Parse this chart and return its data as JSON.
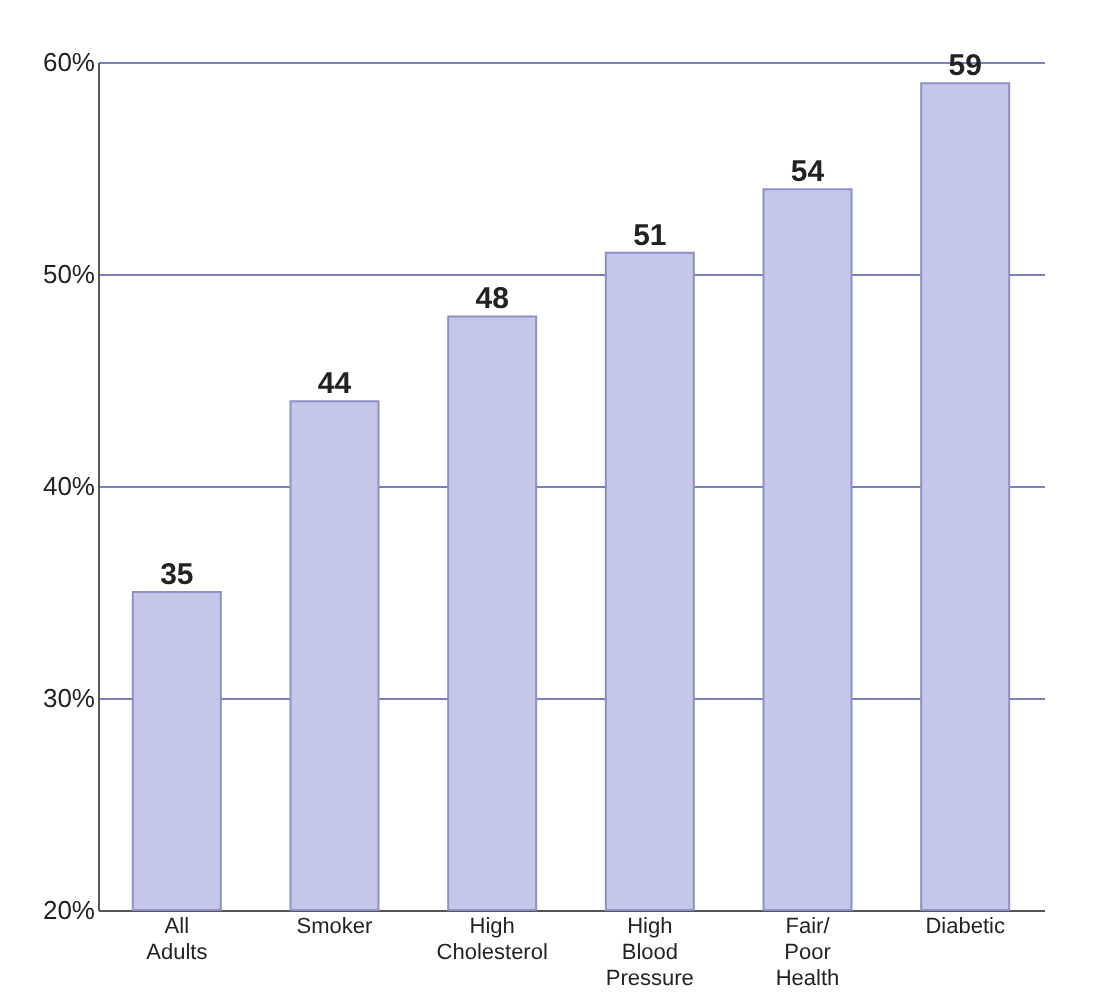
{
  "chart_data": {
    "type": "bar",
    "categories": [
      "All Adults",
      "Smoker",
      "High Cholesterol",
      "High Blood Pressure",
      "Fair/ Poor Health",
      "Diabetic"
    ],
    "values": [
      35,
      44,
      48,
      51,
      54,
      59
    ],
    "color": "#c5c7e8",
    "ylim": [
      20,
      60
    ],
    "yticks": [
      {
        "value": 20,
        "label": "20%"
      },
      {
        "value": 30,
        "label": "30%"
      },
      {
        "value": 40,
        "label": "40%"
      },
      {
        "value": 50,
        "label": "50%"
      },
      {
        "value": 60,
        "label": "60%"
      }
    ],
    "grid": "y",
    "data_labels": true
  }
}
